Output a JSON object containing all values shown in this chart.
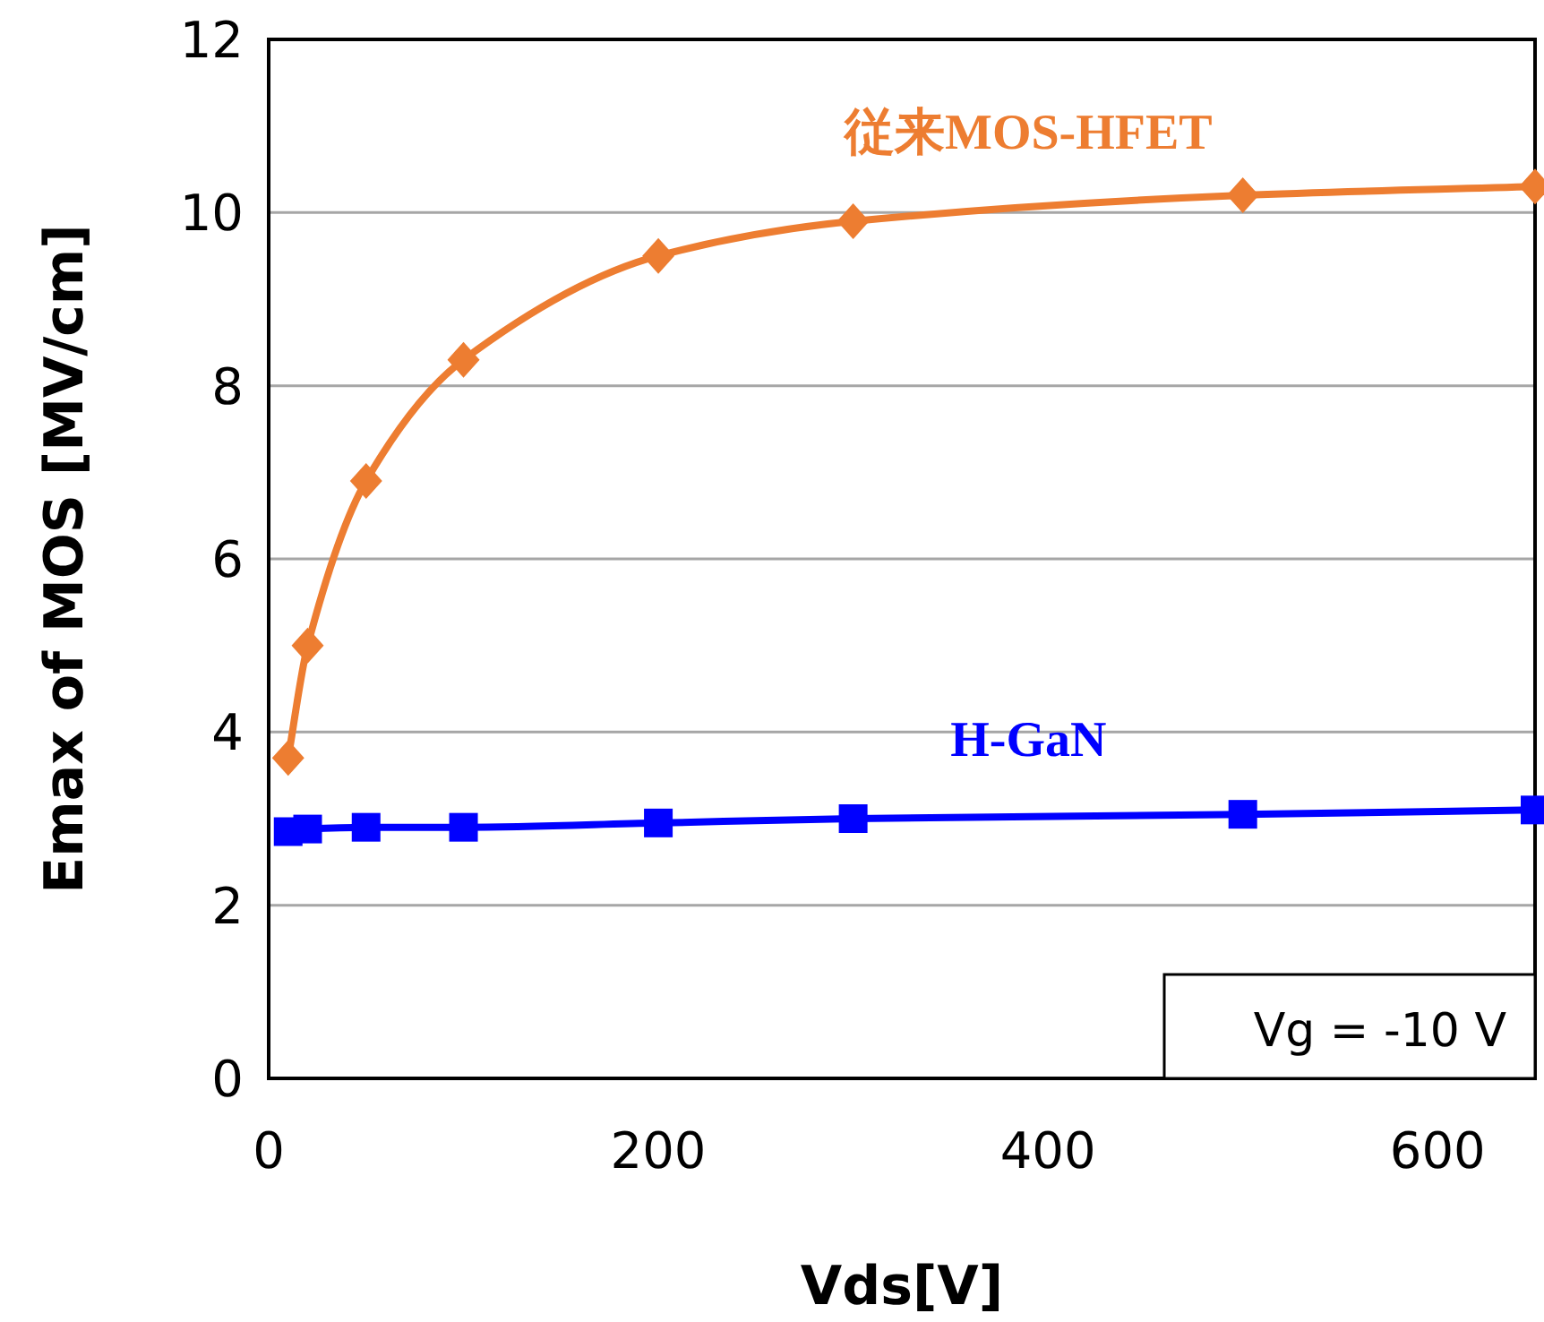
{
  "chart_data": {
    "type": "line",
    "xlabel": "Vds[V]",
    "ylabel": "Emax of MOS [MV/cm]",
    "xlim": [
      0,
      650
    ],
    "ylim": [
      0,
      12
    ],
    "xticks": [
      0,
      200,
      400,
      600
    ],
    "yticks": [
      0,
      2,
      4,
      6,
      8,
      10,
      12
    ],
    "grid": "y",
    "annotations": [
      "Vg = -10 V"
    ],
    "series": [
      {
        "name": "従来MOS-HFET",
        "color": "#ed7d31",
        "marker": "diamond",
        "x": [
          10,
          20,
          50,
          100,
          200,
          300,
          500,
          650
        ],
        "values": [
          3.7,
          5.0,
          6.9,
          8.3,
          9.5,
          9.9,
          10.2,
          10.3
        ]
      },
      {
        "name": "H-GaN",
        "color": "#0000ff",
        "marker": "square",
        "x": [
          10,
          20,
          50,
          100,
          200,
          300,
          500,
          650
        ],
        "values": [
          2.85,
          2.88,
          2.9,
          2.9,
          2.95,
          3.0,
          3.05,
          3.1
        ]
      }
    ]
  }
}
